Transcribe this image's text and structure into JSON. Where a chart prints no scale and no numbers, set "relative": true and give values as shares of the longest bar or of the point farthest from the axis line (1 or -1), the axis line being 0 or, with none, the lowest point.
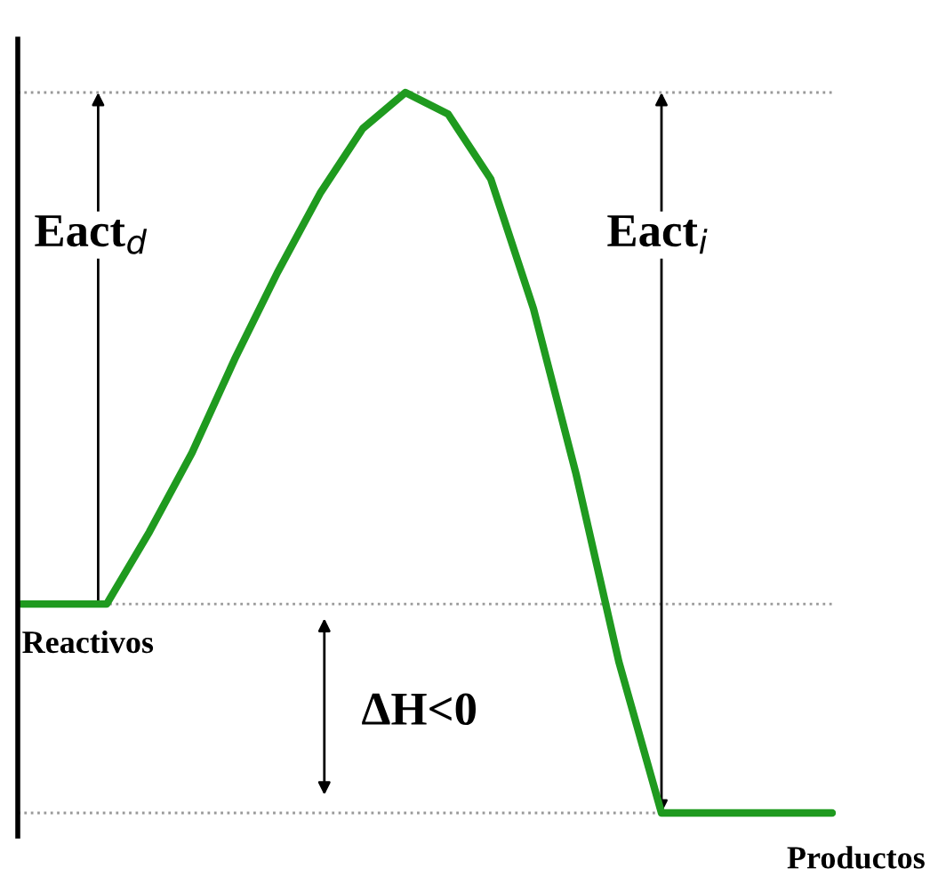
{
  "chart_data": {
    "type": "line",
    "relative": true,
    "categories": [
      null,
      null,
      null,
      null,
      null,
      null,
      null,
      null,
      null,
      null,
      null,
      null,
      null,
      null,
      null,
      null,
      null,
      null,
      null,
      null
    ],
    "series": [
      {
        "color": "#1f9a1f",
        "values": [
          0.29,
          0.29,
          0.29,
          0.39,
          0.5,
          0.63,
          0.75,
          0.86,
          0.95,
          1,
          0.97,
          0.88,
          0.7,
          0.47,
          0.21,
          0,
          0,
          0,
          0,
          0
        ]
      }
    ],
    "ref_lines": [
      {
        "axis": "y",
        "value": 1,
        "color": "#999999",
        "line_style": "dotted"
      },
      {
        "axis": "y",
        "value": 0.29,
        "color": "#999999",
        "line_style": "dotted"
      },
      {
        "axis": "y",
        "value": 0,
        "color": "#999999",
        "line_style": "dotted"
      }
    ],
    "annotations": [
      "Eact$_{d}$",
      "Eact$_{i}$",
      "ΔH<0",
      "Reactivos",
      "Productos"
    ]
  }
}
